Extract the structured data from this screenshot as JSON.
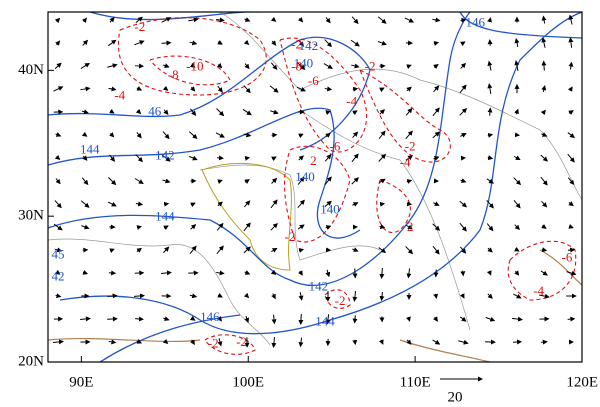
{
  "map": {
    "xlim": [
      88,
      120
    ],
    "ylim": [
      20,
      44
    ],
    "xticks": [
      {
        "value": 90,
        "label": "90E"
      },
      {
        "value": 100,
        "label": "100E"
      },
      {
        "value": 110,
        "label": "110E"
      },
      {
        "value": 120,
        "label": "120E"
      }
    ],
    "yticks": [
      {
        "value": 20,
        "label": "20N"
      },
      {
        "value": 30,
        "label": "30N"
      },
      {
        "value": 40,
        "label": "40N"
      }
    ],
    "reference_vector": "20",
    "height_labels": [
      {
        "text": "146",
        "lon": 113.6,
        "lat": 43.2
      },
      {
        "text": "142",
        "lon": 103.6,
        "lat": 41.6
      },
      {
        "text": "140",
        "lon": 103.3,
        "lat": 40.4
      },
      {
        "text": "46",
        "lon": 94.4,
        "lat": 37.1
      },
      {
        "text": "144",
        "lon": 90.5,
        "lat": 34.5
      },
      {
        "text": "142",
        "lon": 95.0,
        "lat": 34.1
      },
      {
        "text": "140",
        "lon": 103.4,
        "lat": 32.6
      },
      {
        "text": "144",
        "lon": 95.0,
        "lat": 29.9
      },
      {
        "text": "140",
        "lon": 104.9,
        "lat": 30.4
      },
      {
        "text": "45",
        "lon": 88.6,
        "lat": 27.3
      },
      {
        "text": "42",
        "lon": 88.6,
        "lat": 25.8
      },
      {
        "text": "142",
        "lon": 104.2,
        "lat": 25.1
      },
      {
        "text": "146",
        "lon": 97.7,
        "lat": 23.0
      },
      {
        "text": "144",
        "lon": 104.6,
        "lat": 22.7
      }
    ],
    "anomaly_labels": [
      {
        "text": "-2",
        "lon": 93.5,
        "lat": 42.9
      },
      {
        "text": "-10",
        "lon": 96.8,
        "lat": 40.2
      },
      {
        "text": "-8",
        "lon": 95.5,
        "lat": 39.6
      },
      {
        "text": "-4",
        "lon": 92.3,
        "lat": 38.2
      },
      {
        "text": "-2",
        "lon": 102.9,
        "lat": 41.7
      },
      {
        "text": "-8",
        "lon": 102.9,
        "lat": 40.2
      },
      {
        "text": "-6",
        "lon": 103.9,
        "lat": 39.2
      },
      {
        "text": "-2",
        "lon": 107.3,
        "lat": 40.2
      },
      {
        "text": "-4",
        "lon": 106.2,
        "lat": 37.8
      },
      {
        "text": "-6",
        "lon": 105.2,
        "lat": 34.7
      },
      {
        "text": "-2",
        "lon": 109.7,
        "lat": 34.7
      },
      {
        "text": "2",
        "lon": 103.9,
        "lat": 33.7
      },
      {
        "text": "-4",
        "lon": 109.4,
        "lat": 33.6
      },
      {
        "text": "-2",
        "lon": 102.5,
        "lat": 28.5
      },
      {
        "text": "2",
        "lon": 109.7,
        "lat": 29.2
      },
      {
        "text": "-2",
        "lon": 105.5,
        "lat": 24.1
      },
      {
        "text": "-2",
        "lon": 97.9,
        "lat": 21.2
      },
      {
        "text": "-2",
        "lon": 99.6,
        "lat": 21.3
      },
      {
        "text": "-6",
        "lon": 119.1,
        "lat": 27.1
      },
      {
        "text": "-4",
        "lon": 117.4,
        "lat": 24.8
      }
    ]
  }
}
